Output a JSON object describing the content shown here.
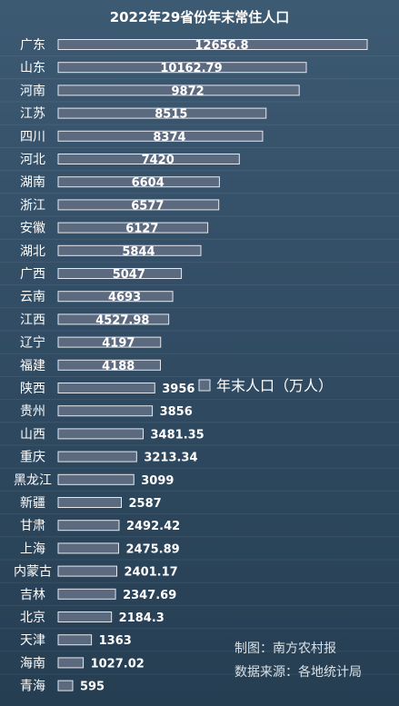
{
  "chart_data": {
    "type": "bar",
    "orientation": "horizontal",
    "title": "2022年29省份年末常住人口",
    "categories": [
      "广东",
      "山东",
      "河南",
      "江苏",
      "四川",
      "河北",
      "湖南",
      "浙江",
      "安徽",
      "湖北",
      "广西",
      "云南",
      "江西",
      "辽宁",
      "福建",
      "陕西",
      "贵州",
      "山西",
      "重庆",
      "黑龙江",
      "新疆",
      "甘肃",
      "上海",
      "内蒙古",
      "吉林",
      "北京",
      "天津",
      "海南",
      "青海"
    ],
    "series": [
      {
        "name": "年末人口（万人）",
        "values": [
          12656.8,
          10162.79,
          9872,
          8515,
          8374,
          7420,
          6604,
          6577,
          6127,
          5844,
          5047,
          4693,
          4527.98,
          4197,
          4188,
          3956,
          3856,
          3481.35,
          3213.34,
          3099,
          2587,
          2492.42,
          2475.89,
          2401.17,
          2347.69,
          2184.3,
          1363,
          1027.02,
          595
        ],
        "labels": [
          "12656.8",
          "10162.79",
          "9872",
          "8515",
          "8374",
          "7420",
          "6604",
          "6577",
          "6127",
          "5844",
          "5047",
          "4693",
          "4527.98",
          "4197",
          "4188",
          "3956",
          "3856",
          "3481.35",
          "3213.34",
          "3099",
          "2587",
          "2492.42",
          "2475.89",
          "2401.17",
          "2347.69",
          "2184.3",
          "1363",
          "1027.02",
          "595"
        ]
      }
    ],
    "xlim": [
      0,
      12656.8
    ],
    "grid": false,
    "legend": "center-right",
    "bar_color": "#5c6a80",
    "bar_border": "#e4e8ee"
  },
  "notes": {
    "maker": "制图：南方农村报",
    "source": "数据来源：各地统计局"
  }
}
